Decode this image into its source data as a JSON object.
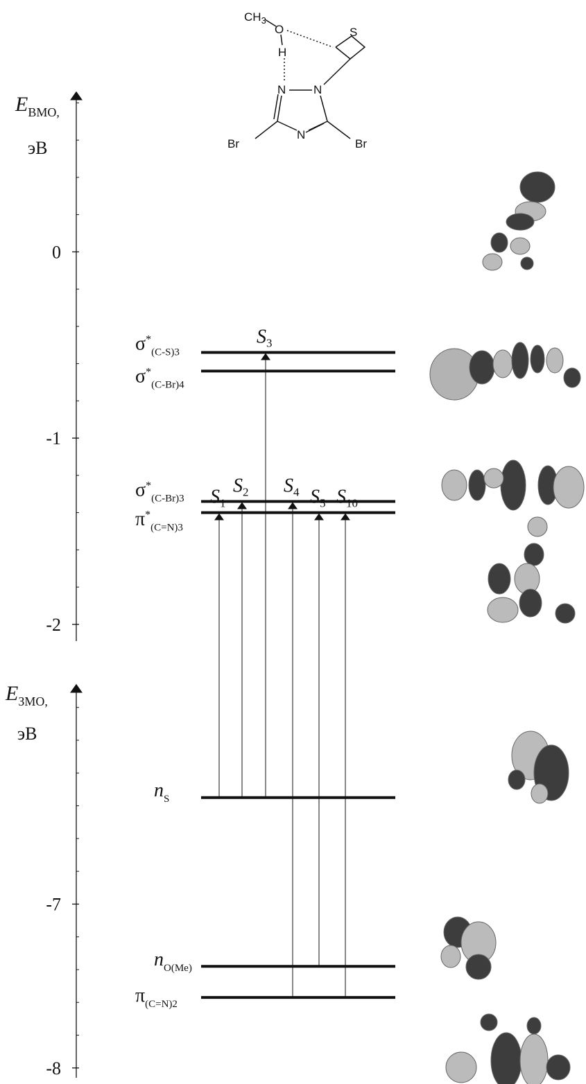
{
  "molecule": {
    "methyl": "CH",
    "methyl_sub": "3",
    "atoms": [
      "O",
      "H",
      "S",
      "N",
      "N",
      "N",
      "Br",
      "Br"
    ]
  },
  "chart_data": {
    "type": "energy_levels",
    "axes": [
      {
        "label": "E",
        "label_sub": "ВМО,",
        "unit": "эВ",
        "ylim": [
          -2.09,
          0.85
        ],
        "yticks": [
          0,
          -1,
          -2
        ],
        "minor_yticks": [
          -1.8,
          -1.6,
          -1.4,
          -1.2,
          -0.8,
          -0.6,
          -0.4,
          -0.2,
          0.2,
          0.4,
          0.6,
          0.8
        ],
        "levels": [
          {
            "symbol": "σ",
            "sup": "*",
            "sub": "(C-S)3",
            "value": -0.54
          },
          {
            "symbol": "σ",
            "sup": "*",
            "sub": "(C-Br)4",
            "value": -0.64
          },
          {
            "symbol": "σ",
            "sup": "*",
            "sub": "(C-Br)3",
            "value": -1.34
          },
          {
            "symbol": "π",
            "sup": "*",
            "sub": "(C=N)3",
            "value": -1.4
          }
        ]
      },
      {
        "label": "E",
        "label_sub": "ЗМО,",
        "unit": "эВ",
        "ylim": [
          -8.06,
          -5.67
        ],
        "yticks": [
          -7,
          -8
        ],
        "minor_yticks": [
          -7.8,
          -7.6,
          -7.4,
          -7.2,
          -6.8,
          -6.6,
          -6.4,
          -6.2,
          -6.0,
          -5.8
        ],
        "levels": [
          {
            "symbol": "n",
            "sub": "S",
            "value": -6.35
          },
          {
            "symbol": "n",
            "sub": "O(Me)",
            "value": -7.38
          },
          {
            "symbol": "π",
            "sub": "(C=N)2",
            "value": -7.57
          }
        ]
      }
    ],
    "transitions": [
      {
        "label": "S",
        "sub": "1"
      },
      {
        "label": "S",
        "sub": "2"
      },
      {
        "label": "S",
        "sub": "3"
      },
      {
        "label": "S",
        "sub": "4"
      },
      {
        "label": "S",
        "sub": "5"
      },
      {
        "label": "S",
        "sub": "10"
      }
    ]
  }
}
